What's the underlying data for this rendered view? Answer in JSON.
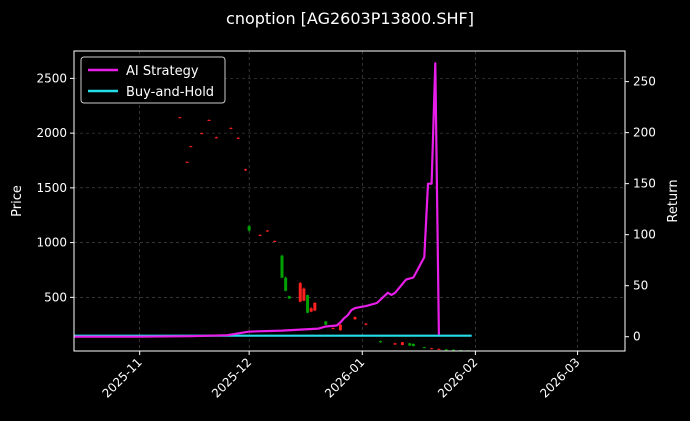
{
  "chart_data": {
    "type": "line",
    "title": "cnoption [AG2603P13800.SHF]",
    "xlabel": "",
    "ylabel": "Price",
    "y2label": "Return",
    "x_ticks": [
      "2025-11",
      "2025-12",
      "2026-01",
      "2026-02",
      "2026-03"
    ],
    "x_tick_dates": [
      "2025-11-01",
      "2025-12-01",
      "2026-01-01",
      "2026-02-01",
      "2026-03-01"
    ],
    "xlim": [
      "2025-10-14",
      "2026-03-14"
    ],
    "ylim": [
      10,
      2750
    ],
    "y_ticks": [
      500,
      1000,
      1500,
      2000,
      2500
    ],
    "y2lim": [
      -14,
      280
    ],
    "y2_ticks": [
      0,
      50,
      100,
      150,
      200,
      250
    ],
    "grid": true,
    "legend": "top-left",
    "colors": {
      "background": "#000000",
      "up": "#00a000",
      "down": "#ff2020",
      "strategy": "#e81ee8",
      "buyhold": "#25dde8",
      "grid": "#555555"
    },
    "series": [
      {
        "name": "AI Strategy",
        "axis": "right",
        "points": [
          [
            "2025-10-14",
            0
          ],
          [
            "2025-11-01",
            0
          ],
          [
            "2025-11-15",
            0.5
          ],
          [
            "2025-11-25",
            1.5
          ],
          [
            "2025-12-01",
            5
          ],
          [
            "2025-12-10",
            6
          ],
          [
            "2025-12-15",
            7
          ],
          [
            "2025-12-20",
            8
          ],
          [
            "2025-12-22",
            10
          ],
          [
            "2025-12-25",
            11
          ],
          [
            "2025-12-26",
            14
          ],
          [
            "2025-12-27",
            18
          ],
          [
            "2025-12-28",
            21
          ],
          [
            "2025-12-29",
            26
          ],
          [
            "2025-12-30",
            28
          ],
          [
            "2026-01-02",
            30
          ],
          [
            "2026-01-05",
            33
          ],
          [
            "2026-01-08",
            43
          ],
          [
            "2026-01-09",
            41
          ],
          [
            "2026-01-10",
            43
          ],
          [
            "2026-01-13",
            56
          ],
          [
            "2026-01-15",
            58
          ],
          [
            "2026-01-18",
            78
          ],
          [
            "2026-01-19",
            150
          ],
          [
            "2026-01-20",
            150
          ],
          [
            "2026-01-21",
            268
          ],
          [
            "2026-01-22",
            2
          ]
        ]
      },
      {
        "name": "Buy-and-Hold",
        "axis": "right",
        "points": [
          [
            "2025-10-14",
            1
          ],
          [
            "2026-01-31",
            1
          ]
        ]
      }
    ],
    "candles": [
      {
        "date": "2025-11-12",
        "open": 2145,
        "close": 2140,
        "high": 2148,
        "low": 2138
      },
      {
        "date": "2025-11-14",
        "open": 1738,
        "close": 1735,
        "high": 1742,
        "low": 1732
      },
      {
        "date": "2025-11-15",
        "open": 1880,
        "close": 1875,
        "high": 1884,
        "low": 1872
      },
      {
        "date": "2025-11-18",
        "open": 2000,
        "close": 1995,
        "high": 2004,
        "low": 1990
      },
      {
        "date": "2025-11-20",
        "open": 2120,
        "close": 2115,
        "high": 2125,
        "low": 2110
      },
      {
        "date": "2025-11-22",
        "open": 1962,
        "close": 1955,
        "high": 1968,
        "low": 1952
      },
      {
        "date": "2025-11-26",
        "open": 2048,
        "close": 2040,
        "high": 2052,
        "low": 2035
      },
      {
        "date": "2025-11-28",
        "open": 1958,
        "close": 1950,
        "high": 1962,
        "low": 1945
      },
      {
        "date": "2025-11-30",
        "open": 1670,
        "close": 1660,
        "high": 1675,
        "low": 1655
      },
      {
        "date": "2025-12-01",
        "open": 1110,
        "close": 1150,
        "high": 1160,
        "low": 1100
      },
      {
        "date": "2025-12-04",
        "open": 1070,
        "close": 1065,
        "high": 1075,
        "low": 1060
      },
      {
        "date": "2025-12-06",
        "open": 1110,
        "close": 1105,
        "high": 1115,
        "low": 1100
      },
      {
        "date": "2025-12-08",
        "open": 1015,
        "close": 1010,
        "high": 1020,
        "low": 1005
      },
      {
        "date": "2025-12-10",
        "open": 680,
        "close": 880,
        "high": 890,
        "low": 675
      },
      {
        "date": "2025-12-11",
        "open": 560,
        "close": 680,
        "high": 690,
        "low": 555
      },
      {
        "date": "2025-12-12",
        "open": 490,
        "close": 510,
        "high": 515,
        "low": 485
      },
      {
        "date": "2025-12-15",
        "open": 630,
        "close": 460,
        "high": 640,
        "low": 455
      },
      {
        "date": "2025-12-16",
        "open": 580,
        "close": 470,
        "high": 590,
        "low": 465
      },
      {
        "date": "2025-12-17",
        "open": 360,
        "close": 520,
        "high": 525,
        "low": 355
      },
      {
        "date": "2025-12-18",
        "open": 400,
        "close": 370,
        "high": 410,
        "low": 365
      },
      {
        "date": "2025-12-19",
        "open": 450,
        "close": 380,
        "high": 455,
        "low": 375
      },
      {
        "date": "2025-12-22",
        "open": 250,
        "close": 280,
        "high": 285,
        "low": 245
      },
      {
        "date": "2025-12-24",
        "open": 220,
        "close": 215,
        "high": 225,
        "low": 210
      },
      {
        "date": "2025-12-26",
        "open": 250,
        "close": 200,
        "high": 255,
        "low": 195
      },
      {
        "date": "2025-12-30",
        "open": 320,
        "close": 300,
        "high": 325,
        "low": 295
      },
      {
        "date": "2026-01-02",
        "open": 260,
        "close": 250,
        "high": 265,
        "low": 245
      },
      {
        "date": "2026-01-06",
        "open": 90,
        "close": 100,
        "high": 105,
        "low": 85
      },
      {
        "date": "2026-01-10",
        "open": 80,
        "close": 70,
        "high": 85,
        "low": 65
      },
      {
        "date": "2026-01-12",
        "open": 90,
        "close": 65,
        "high": 92,
        "low": 62
      },
      {
        "date": "2026-01-14",
        "open": 60,
        "close": 80,
        "high": 85,
        "low": 55
      },
      {
        "date": "2026-01-15",
        "open": 55,
        "close": 75,
        "high": 78,
        "low": 52
      },
      {
        "date": "2026-01-18",
        "open": 40,
        "close": 45,
        "high": 48,
        "low": 38
      },
      {
        "date": "2026-01-20",
        "open": 35,
        "close": 30,
        "high": 38,
        "low": 28
      },
      {
        "date": "2026-01-22",
        "open": 30,
        "close": 25,
        "high": 32,
        "low": 22
      },
      {
        "date": "2026-01-24",
        "open": 20,
        "close": 25,
        "high": 28,
        "low": 18
      },
      {
        "date": "2026-01-26",
        "open": 18,
        "close": 22,
        "high": 24,
        "low": 16
      },
      {
        "date": "2026-01-28",
        "open": 15,
        "close": 18,
        "high": 20,
        "low": 14
      },
      {
        "date": "2026-01-30",
        "open": 14,
        "close": 16,
        "high": 17,
        "low": 13
      }
    ]
  }
}
